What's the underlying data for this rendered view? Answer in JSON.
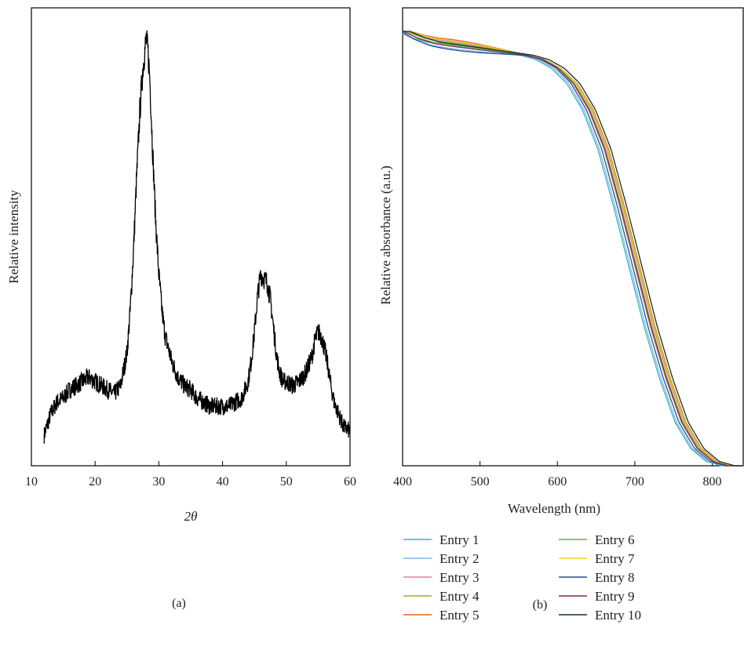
{
  "chart_data": [
    {
      "type": "line",
      "panel_label": "(a)",
      "xlabel": "2θ",
      "ylabel": "Relative intensity",
      "xlim": [
        10,
        60
      ],
      "xticks": [
        "10",
        "20",
        "30",
        "40",
        "50",
        "60"
      ],
      "grid": false,
      "series": [
        {
          "color": "#000000",
          "x": [
            12,
            13,
            14,
            15,
            16,
            17,
            18,
            19,
            20,
            21,
            22,
            23,
            24,
            25,
            25.5,
            26,
            26.5,
            27,
            27.5,
            28,
            28.3,
            28.6,
            29,
            29.5,
            30,
            30.5,
            31,
            32,
            33,
            34,
            35,
            36,
            37,
            38,
            39,
            40,
            41,
            42,
            43,
            44,
            44.5,
            45,
            45.5,
            46,
            46.5,
            47,
            47.5,
            48,
            48.5,
            49,
            49.5,
            50,
            51,
            52,
            53,
            54,
            54.5,
            55,
            55.5,
            56,
            56.5,
            57,
            57.5,
            58,
            58.5,
            59,
            60
          ],
          "y": [
            0.04,
            0.09,
            0.12,
            0.13,
            0.15,
            0.16,
            0.17,
            0.18,
            0.17,
            0.16,
            0.15,
            0.14,
            0.16,
            0.24,
            0.34,
            0.48,
            0.66,
            0.82,
            0.93,
            1.0,
            0.97,
            0.9,
            0.74,
            0.56,
            0.43,
            0.34,
            0.28,
            0.22,
            0.18,
            0.16,
            0.15,
            0.13,
            0.12,
            0.11,
            0.11,
            0.11,
            0.11,
            0.12,
            0.13,
            0.17,
            0.22,
            0.29,
            0.38,
            0.43,
            0.42,
            0.41,
            0.37,
            0.3,
            0.23,
            0.19,
            0.17,
            0.17,
            0.16,
            0.17,
            0.19,
            0.23,
            0.27,
            0.29,
            0.28,
            0.25,
            0.21,
            0.16,
            0.12,
            0.1,
            0.08,
            0.06,
            0.05
          ],
          "noise": 0.02
        }
      ]
    },
    {
      "type": "line",
      "panel_label": "(b)",
      "xlabel": "Wavelength (nm)",
      "ylabel": "Relative absorbance (a.u.)",
      "xlim": [
        400,
        840
      ],
      "xticks": [
        "400",
        "500",
        "600",
        "700",
        "800"
      ],
      "grid": false,
      "legend_position": "bottom",
      "x": [
        400,
        420,
        440,
        460,
        480,
        500,
        520,
        540,
        560,
        580,
        600,
        620,
        640,
        660,
        680,
        700,
        720,
        740,
        760,
        780,
        800,
        820,
        840
      ],
      "series": [
        {
          "name": "Entry 1",
          "color": "#3cb6c8",
          "shift": -8,
          "top": 0.0
        },
        {
          "name": "Entry 2",
          "color": "#7fb8e6",
          "shift": -6,
          "top": -0.01
        },
        {
          "name": "Entry 3",
          "color": "#e87aa8",
          "shift": 2,
          "top": 0.01
        },
        {
          "name": "Entry 4",
          "color": "#8db33a",
          "shift": 0,
          "top": 0.0
        },
        {
          "name": "Entry 5",
          "color": "#e3642a",
          "shift": 6,
          "top": 0.015
        },
        {
          "name": "Entry 6",
          "color": "#7ab32e",
          "shift": 4,
          "top": 0.005
        },
        {
          "name": "Entry 7",
          "color": "#e8d32a",
          "shift": 5,
          "top": 0.012
        },
        {
          "name": "Entry 8",
          "color": "#2a4f8f",
          "shift": -3,
          "top": -0.015
        },
        {
          "name": "Entry 9",
          "color": "#7a2f66",
          "shift": 1,
          "top": -0.005
        },
        {
          "name": "Entry 10",
          "color": "#123322",
          "shift": 9,
          "top": 0.0
        }
      ],
      "base_curve": [
        1.0,
        0.985,
        0.975,
        0.97,
        0.965,
        0.96,
        0.955,
        0.95,
        0.945,
        0.935,
        0.915,
        0.88,
        0.82,
        0.73,
        0.6,
        0.46,
        0.32,
        0.2,
        0.1,
        0.04,
        0.01,
        0.0,
        0.0
      ]
    }
  ]
}
